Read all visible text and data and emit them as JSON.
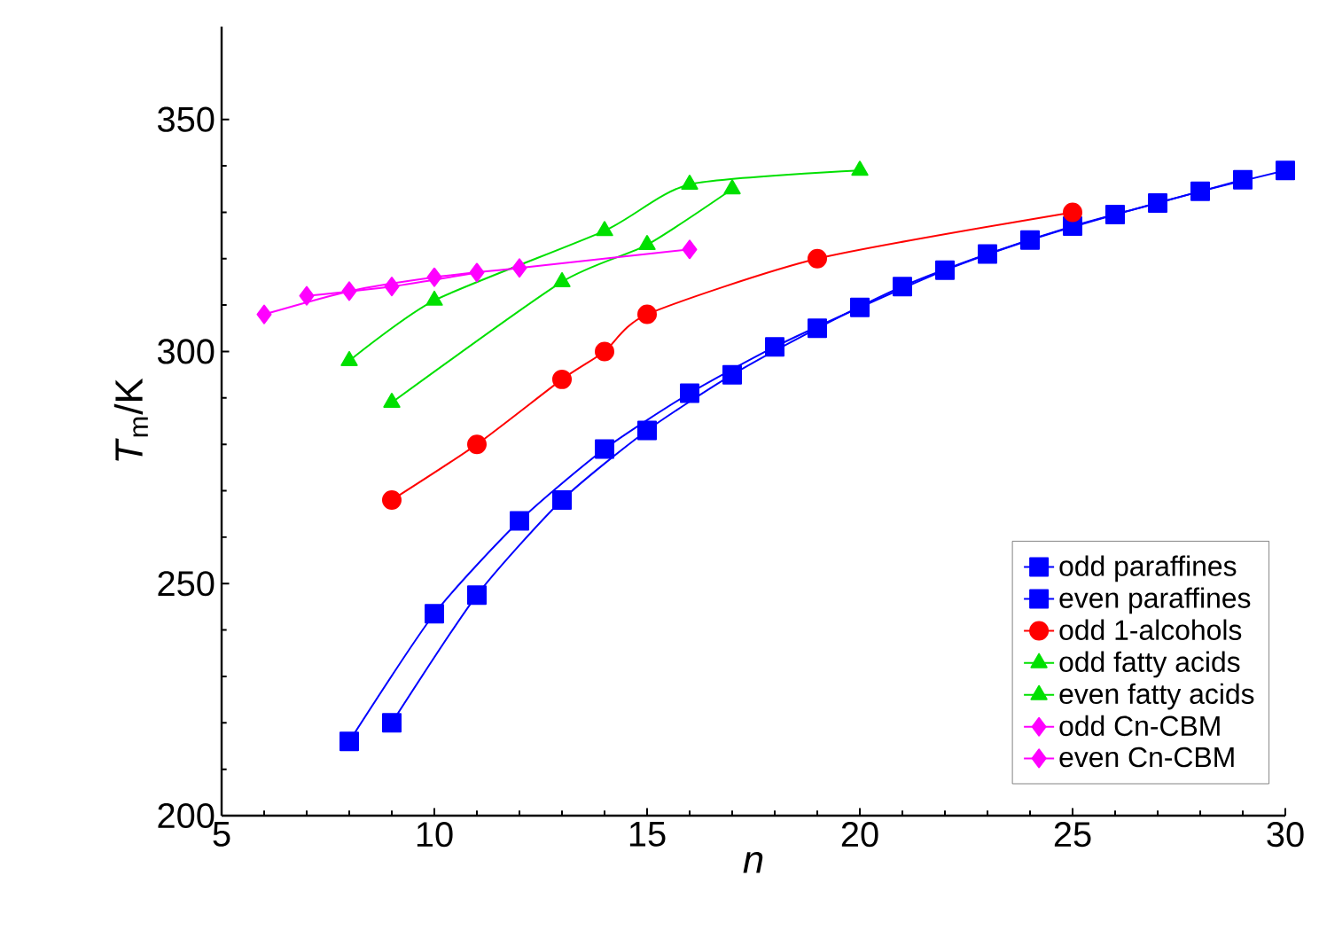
{
  "chart_data": {
    "type": "line",
    "xlabel": "n",
    "ylabel": "*T*$_{m}$/K",
    "xlim": [
      5,
      30
    ],
    "ylim": [
      200,
      370
    ],
    "xticks": [
      5,
      10,
      15,
      20,
      25,
      30
    ],
    "yticks": [
      200,
      250,
      300,
      350
    ],
    "grid": false,
    "legend": "bottom right",
    "series": [
      {
        "name": "odd paraffines",
        "color": "#0000ff",
        "marker": "square",
        "x": [
          9,
          11,
          13,
          15,
          17,
          19,
          21,
          23,
          25,
          27,
          29
        ],
        "values": [
          220,
          247.5,
          268,
          283,
          295,
          305,
          314,
          321,
          327,
          332,
          337
        ]
      },
      {
        "name": "even paraffines",
        "color": "#0000ff",
        "marker": "square",
        "x": [
          8,
          10,
          12,
          14,
          16,
          18,
          20,
          22,
          24,
          26,
          28,
          30
        ],
        "values": [
          216,
          243.5,
          263.5,
          279,
          291,
          301,
          309.5,
          317.5,
          324,
          329.5,
          334.5,
          339
        ]
      },
      {
        "name": "odd 1-alcohols",
        "color": "#ff0000",
        "marker": "circle",
        "x": [
          9,
          11,
          13,
          14,
          15,
          19,
          25
        ],
        "values": [
          268,
          280,
          294,
          300,
          308,
          320,
          330
        ]
      },
      {
        "name": "odd fatty acids",
        "color": "#00e000",
        "marker": "triangle",
        "x": [
          9,
          13,
          15,
          17
        ],
        "values": [
          289,
          315,
          323,
          335
        ]
      },
      {
        "name": "even fatty acids",
        "color": "#00e000",
        "marker": "triangle",
        "x": [
          8,
          10,
          14,
          16,
          20
        ],
        "values": [
          298,
          311,
          326,
          336,
          339
        ]
      },
      {
        "name": "odd Cn-CBM",
        "color": "#ff00ff",
        "marker": "diamond",
        "x": [
          7,
          9,
          11
        ],
        "values": [
          312,
          314,
          317
        ]
      },
      {
        "name": "even Cn-CBM",
        "color": "#ff00ff",
        "marker": "diamond",
        "x": [
          6,
          8,
          10,
          12,
          16
        ],
        "values": [
          308,
          313,
          316,
          318,
          322
        ]
      }
    ]
  }
}
